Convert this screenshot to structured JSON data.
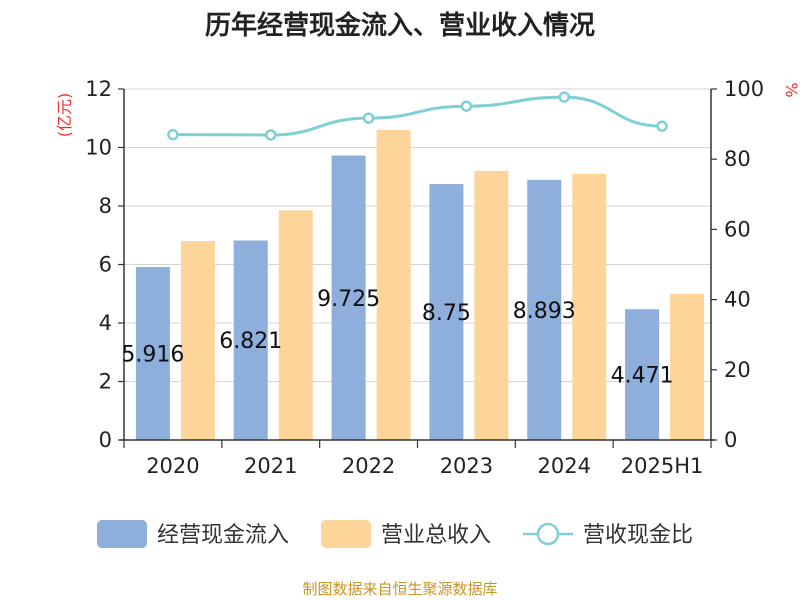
{
  "chart_data": {
    "type": "bar",
    "title": "历年经营现金流入、营业收入情况",
    "categories": [
      "2020",
      "2021",
      "2022",
      "2023",
      "2024",
      "2025H1"
    ],
    "series": [
      {
        "name": "经营现金流入",
        "axis": "left",
        "kind": "bar",
        "color": "#8eaedc",
        "values": [
          5.916,
          6.821,
          9.725,
          8.75,
          8.893,
          4.471
        ],
        "labels": [
          "5.916",
          "6.821",
          "9.725",
          "8.75",
          "8.893",
          "4.471"
        ]
      },
      {
        "name": "营业总收入",
        "axis": "left",
        "kind": "bar",
        "color": "#fdd59a",
        "values": [
          6.8,
          7.85,
          10.6,
          9.2,
          9.1,
          5.0
        ]
      },
      {
        "name": "营收现金比",
        "axis": "right",
        "kind": "line",
        "color": "#7fd0d6",
        "values": [
          87.0,
          86.9,
          91.7,
          95.1,
          97.7,
          89.4
        ]
      }
    ],
    "left_axis": {
      "unit": "(亿元)",
      "ylim": [
        0,
        12
      ],
      "ticks": [
        "0",
        "2",
        "4",
        "6",
        "8",
        "10",
        "12"
      ]
    },
    "right_axis": {
      "unit": "%",
      "ylim": [
        0,
        100
      ],
      "ticks": [
        "0",
        "20",
        "40",
        "60",
        "80",
        "100"
      ]
    },
    "grid": true,
    "legend_position": "bottom"
  },
  "source_note": "制图数据来自恒生聚源数据库"
}
